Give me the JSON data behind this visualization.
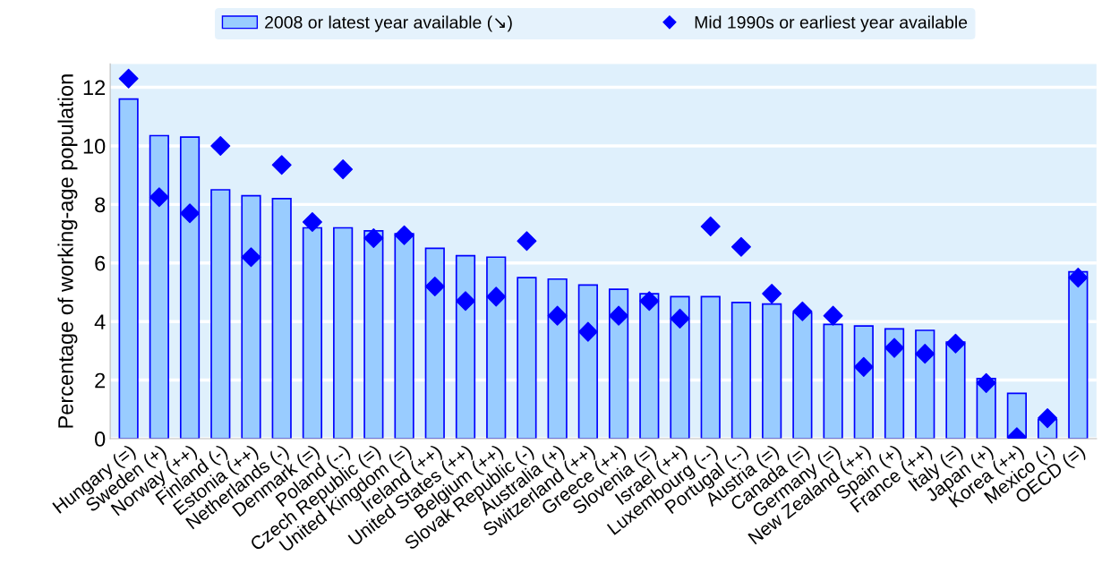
{
  "chart_data": {
    "type": "bar",
    "ylabel": "Percentage of working-age population",
    "categories": [
      "Hungary (=)",
      "Sweden (+)",
      "Norway (++)",
      "Finland (-)",
      "Estonia (++)",
      "Netherlands (-)",
      "Denmark (=)",
      "Poland (--)",
      "Czech Republic (=)",
      "United Kingdom (=)",
      "Ireland (++)",
      "United States (++)",
      "Belgium (++)",
      "Slovak Republic (-)",
      "Australia (+)",
      "Switzerland (++)",
      "Greece (++)",
      "Slovenia (=)",
      "Israel (++)",
      "Luxembourg (--)",
      "Portugal (--)",
      "Austria (=)",
      "Canada (=)",
      "Germany (=)",
      "New Zealand (++)",
      "Spain (+)",
      "France (++)",
      "Italy (=)",
      "Japan (+)",
      "Korea (++)",
      "Mexico (-)",
      "OECD (=)"
    ],
    "series": [
      {
        "name": "2008 or latest year available (↘)",
        "color": "#99ccff",
        "values": [
          11.6,
          10.35,
          10.3,
          8.5,
          8.3,
          8.2,
          7.2,
          7.2,
          7.1,
          7.0,
          6.5,
          6.25,
          6.2,
          5.5,
          5.45,
          5.25,
          5.1,
          4.95,
          4.85,
          4.85,
          4.65,
          4.6,
          4.3,
          3.9,
          3.85,
          3.75,
          3.7,
          3.3,
          2.05,
          1.55,
          0.65,
          5.7
        ]
      },
      {
        "name": "Mid 1990s or earliest year available",
        "type": "scatter",
        "color": "#0000ff",
        "marker": "diamond",
        "values": [
          12.3,
          8.25,
          7.7,
          10.0,
          6.2,
          9.35,
          7.4,
          9.2,
          6.85,
          6.95,
          5.2,
          4.7,
          4.85,
          6.75,
          4.2,
          3.65,
          4.2,
          4.7,
          4.1,
          7.25,
          6.55,
          4.95,
          4.35,
          4.2,
          2.45,
          3.1,
          2.9,
          3.25,
          1.9,
          0.05,
          0.7,
          5.5
        ]
      }
    ],
    "ylim": [
      0,
      12.8
    ],
    "yticks": [
      0,
      2,
      4,
      6,
      8,
      10,
      12
    ],
    "grid": "y",
    "legend": "top"
  }
}
